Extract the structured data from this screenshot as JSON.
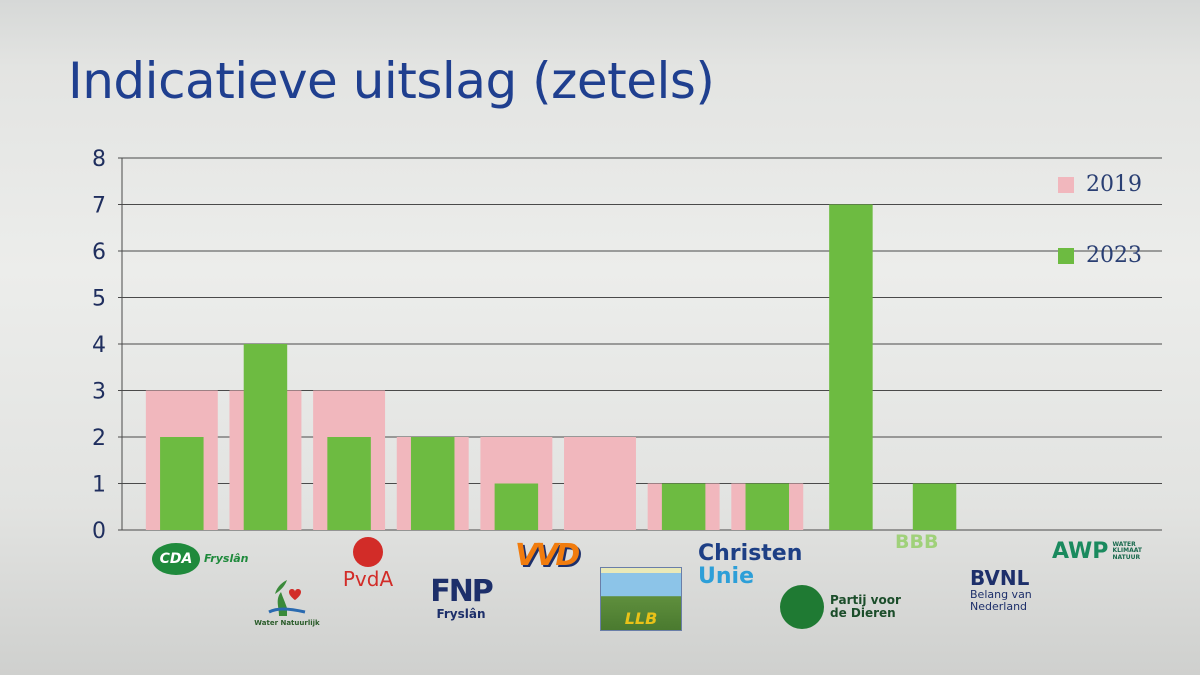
{
  "title": "Indicatieve uitslag (zetels)",
  "colors": {
    "title": "#1f3f8f",
    "series_2019": "#f1b7bd",
    "series_2023": "#6dbb41",
    "grid": "#4a4a4a",
    "axis_text": "#1f2e5e"
  },
  "legend": {
    "s2019": "2019",
    "s2023": "2023",
    "placement": "right"
  },
  "chart_data": {
    "type": "bar",
    "title": "Indicatieve uitslag (zetels)",
    "categories": [
      "CDA Fryslân",
      "Water Natuurlijk",
      "PvdA",
      "FNP Fryslân",
      "VVD",
      "LLB",
      "ChristenUnie",
      "Partij voor de Dieren",
      "BBB",
      "BVNL Belang van Nederland",
      "AWP Water Klimaat Natuur"
    ],
    "series": [
      {
        "name": "2019",
        "values": [
          3,
          3,
          3,
          2,
          2,
          2,
          1,
          1,
          0,
          0,
          0
        ]
      },
      {
        "name": "2023",
        "values": [
          2,
          4,
          2,
          2,
          1,
          0,
          1,
          1,
          7,
          1,
          0
        ]
      }
    ],
    "xlabel": "",
    "ylabel": "",
    "ylim": [
      0,
      8
    ],
    "yticks": [
      "0",
      "1",
      "2",
      "3",
      "4",
      "5",
      "6",
      "7",
      "8"
    ],
    "grid": true,
    "legend_placement": "right"
  },
  "logos": {
    "cda_main": "CDA",
    "cda_sub": "Fryslân",
    "wn": "Water Natuurlijk",
    "pvda": "PvdA",
    "fnp_mark": "FNP",
    "fnp_sub": "Fryslân",
    "vvd": "VVD",
    "llb": "LLB",
    "cu_1": "Christen",
    "cu_2": "Unie",
    "pvdd": "Partij voor de Dieren",
    "bbb": "BBB",
    "bvnl_1": "BVNL",
    "bvnl_2": "Belang van Nederland",
    "awp_1": "AWP",
    "awp_2": "WATER KLIMAAT NATUUR"
  }
}
